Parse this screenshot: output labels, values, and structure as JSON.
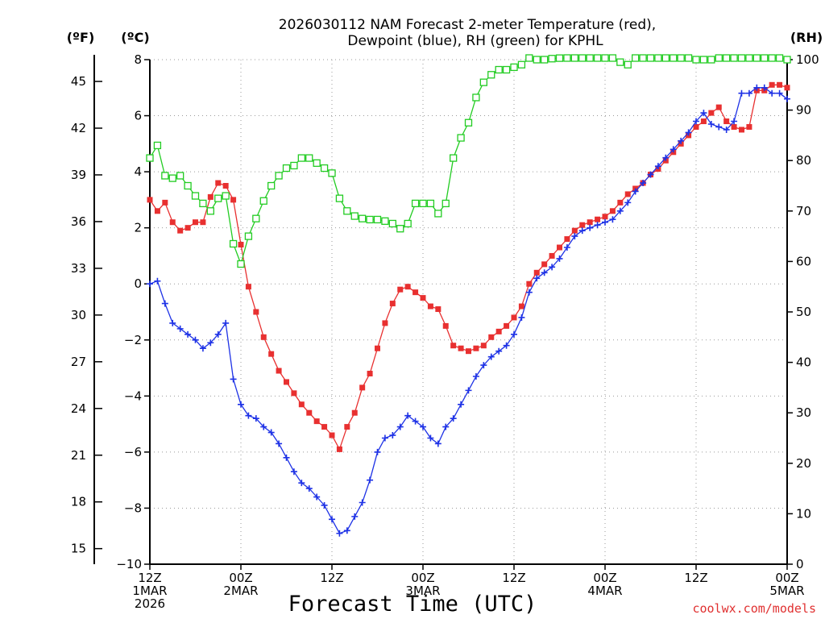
{
  "chart_data": {
    "type": "line",
    "title_line1": "2026030112 NAM Forecast 2-meter Temperature (red),",
    "title_line2": "Dewpoint (blue), RH (green) for KPHL",
    "xlabel": "Forecast Time (UTC)",
    "credit": "coolwx.com/models",
    "left_unit_f": "(ºF)",
    "left_unit_c": "(ºC)",
    "right_unit": "(RH)",
    "hour_range": [
      0,
      84
    ],
    "ylim_c": [
      -10,
      8
    ],
    "ylim_rh": [
      0,
      100
    ],
    "yticks_c": [
      -10,
      -8,
      -6,
      -4,
      -2,
      0,
      2,
      4,
      6,
      8
    ],
    "ytick_labels_c": [
      "−10",
      "−8",
      "−6",
      "−4",
      "−2",
      "0",
      "2",
      "4",
      "6",
      "8"
    ],
    "yticks_f": [
      15,
      18,
      21,
      24,
      27,
      30,
      33,
      36,
      39,
      42,
      45
    ],
    "yticks_rh": [
      0,
      10,
      20,
      30,
      40,
      50,
      60,
      70,
      80,
      90,
      100
    ],
    "xticks": [
      {
        "hour": 0,
        "lines": [
          "12Z",
          "1MAR",
          "2026"
        ]
      },
      {
        "hour": 12,
        "lines": [
          "00Z",
          "2MAR"
        ]
      },
      {
        "hour": 24,
        "lines": [
          "12Z"
        ]
      },
      {
        "hour": 36,
        "lines": [
          "00Z",
          "3MAR"
        ]
      },
      {
        "hour": 48,
        "lines": [
          "12Z"
        ]
      },
      {
        "hour": 60,
        "lines": [
          "00Z",
          "4MAR"
        ]
      },
      {
        "hour": 72,
        "lines": [
          "12Z"
        ]
      },
      {
        "hour": 84,
        "lines": [
          "00Z",
          "5MAR"
        ]
      }
    ],
    "series": [
      {
        "name": "Temperature",
        "unit": "C",
        "color": "#e83030",
        "marker": "filled-square",
        "values": [
          3.0,
          2.6,
          2.9,
          2.2,
          1.9,
          2.0,
          2.2,
          2.2,
          3.1,
          3.6,
          3.5,
          3.0,
          1.4,
          -0.1,
          -1.0,
          -1.9,
          -2.5,
          -3.1,
          -3.5,
          -3.9,
          -4.3,
          -4.6,
          -4.9,
          -5.1,
          -5.4,
          -5.9,
          -5.1,
          -4.6,
          -3.7,
          -3.2,
          -2.3,
          -1.4,
          -0.7,
          -0.2,
          -0.1,
          -0.3,
          -0.5,
          -0.8,
          -0.9,
          -1.5,
          -2.2,
          -2.3,
          -2.4,
          -2.3,
          -2.2,
          -1.9,
          -1.7,
          -1.5,
          -1.2,
          -0.8,
          0.0,
          0.4,
          0.7,
          1.0,
          1.3,
          1.6,
          1.9,
          2.1,
          2.2,
          2.3,
          2.4,
          2.6,
          2.9,
          3.2,
          3.4,
          3.6,
          3.9,
          4.1,
          4.4,
          4.7,
          5.0,
          5.3,
          5.6,
          5.8,
          6.1,
          6.3,
          5.8,
          5.6,
          5.5,
          5.6,
          6.9,
          6.9,
          7.1,
          7.1,
          7.0
        ]
      },
      {
        "name": "Dewpoint",
        "unit": "C",
        "color": "#1e32e6",
        "marker": "plus",
        "values": [
          0.0,
          0.1,
          -0.7,
          -1.4,
          -1.6,
          -1.8,
          -2.0,
          -2.3,
          -2.1,
          -1.8,
          -1.4,
          -3.4,
          -4.3,
          -4.7,
          -4.8,
          -5.1,
          -5.3,
          -5.7,
          -6.2,
          -6.7,
          -7.1,
          -7.3,
          -7.6,
          -7.9,
          -8.4,
          -8.9,
          -8.8,
          -8.3,
          -7.8,
          -7.0,
          -6.0,
          -5.5,
          -5.4,
          -5.1,
          -4.7,
          -4.9,
          -5.1,
          -5.5,
          -5.7,
          -5.1,
          -4.8,
          -4.3,
          -3.8,
          -3.3,
          -2.9,
          -2.6,
          -2.4,
          -2.2,
          -1.8,
          -1.2,
          -0.3,
          0.2,
          0.4,
          0.6,
          0.9,
          1.3,
          1.7,
          1.9,
          2.0,
          2.1,
          2.2,
          2.3,
          2.6,
          2.9,
          3.3,
          3.6,
          3.9,
          4.2,
          4.5,
          4.8,
          5.1,
          5.4,
          5.8,
          6.1,
          5.7,
          5.6,
          5.5,
          5.8,
          6.8,
          6.8,
          7.0,
          7.0,
          6.8,
          6.8,
          6.6
        ]
      },
      {
        "name": "RH",
        "unit": "%",
        "color": "#22cc22",
        "marker": "open-square",
        "values": [
          80.5,
          83,
          77,
          76.5,
          77,
          75,
          73,
          71.5,
          70,
          72.5,
          73,
          63.5,
          59.5,
          65,
          68.5,
          72,
          75,
          77,
          78.5,
          79,
          80.5,
          80.5,
          79.5,
          78.5,
          77.5,
          72.5,
          70,
          69,
          68.5,
          68.3,
          68.3,
          68,
          67.5,
          66.5,
          67.5,
          71.5,
          71.5,
          71.5,
          69.5,
          71.5,
          80.5,
          84.5,
          87.5,
          92.5,
          95.5,
          97,
          98,
          98,
          98.5,
          99,
          100.5,
          100,
          100,
          100.2,
          100.3,
          100.4,
          100.5,
          100.7,
          100.9,
          101,
          101,
          100.5,
          99.5,
          99,
          100.5,
          101,
          101,
          100.5,
          101,
          101,
          101.5,
          101.5,
          100,
          100,
          100,
          101,
          101,
          101,
          101,
          101.5,
          101,
          101,
          101,
          100.5,
          100
        ]
      }
    ]
  }
}
